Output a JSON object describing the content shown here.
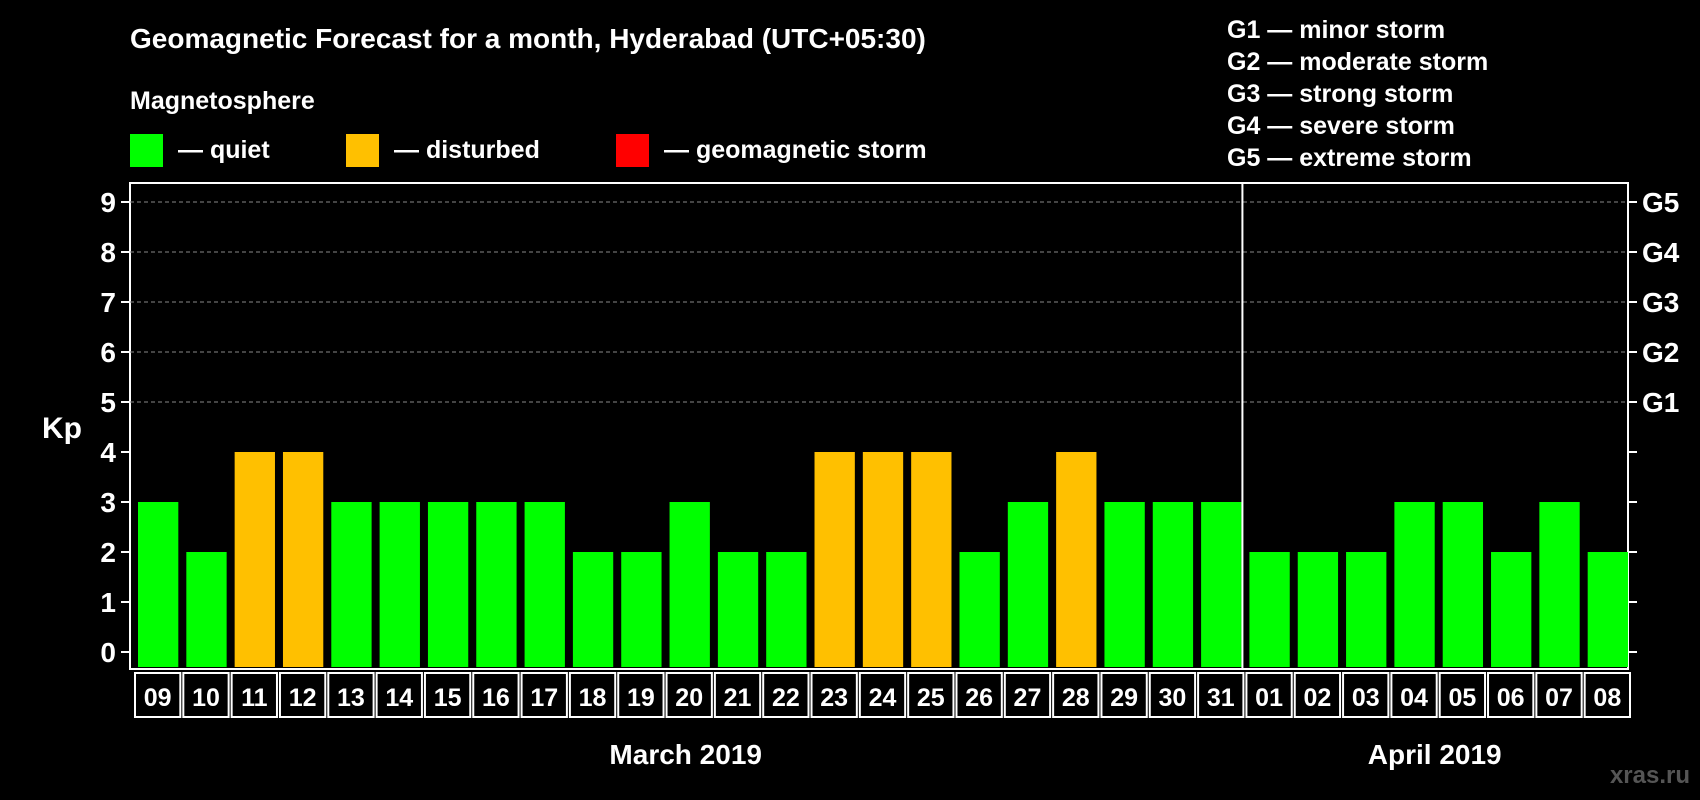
{
  "chart_data": {
    "type": "bar",
    "title": "Geomagnetic Forecast for a month, Hyderabad (UTC+05:30)",
    "ylabel": "Kp",
    "ylim": [
      0,
      9
    ],
    "yticks": [
      "0",
      "1",
      "2",
      "3",
      "4",
      "5",
      "6",
      "7",
      "8",
      "9"
    ],
    "right_axis_labels": [
      {
        "kp": 5,
        "label": "G1"
      },
      {
        "kp": 6,
        "label": "G2"
      },
      {
        "kp": 7,
        "label": "G3"
      },
      {
        "kp": 8,
        "label": "G4"
      },
      {
        "kp": 9,
        "label": "G5"
      }
    ],
    "categories": [
      "09",
      "10",
      "11",
      "12",
      "13",
      "14",
      "15",
      "16",
      "17",
      "18",
      "19",
      "20",
      "21",
      "22",
      "23",
      "24",
      "25",
      "26",
      "27",
      "28",
      "29",
      "30",
      "31",
      "01",
      "02",
      "03",
      "04",
      "05",
      "06",
      "07",
      "08"
    ],
    "values": [
      3,
      2,
      4,
      4,
      3,
      3,
      3,
      3,
      3,
      2,
      2,
      3,
      2,
      2,
      4,
      4,
      4,
      2,
      3,
      4,
      3,
      3,
      3,
      2,
      2,
      2,
      3,
      3,
      2,
      3,
      2
    ],
    "status": [
      "quiet",
      "quiet",
      "disturbed",
      "disturbed",
      "quiet",
      "quiet",
      "quiet",
      "quiet",
      "quiet",
      "quiet",
      "quiet",
      "quiet",
      "quiet",
      "quiet",
      "disturbed",
      "disturbed",
      "disturbed",
      "quiet",
      "quiet",
      "disturbed",
      "quiet",
      "quiet",
      "quiet",
      "quiet",
      "quiet",
      "quiet",
      "quiet",
      "quiet",
      "quiet",
      "quiet",
      "quiet"
    ],
    "months": [
      {
        "label": "March 2019",
        "first_index": 0,
        "last_index": 22
      },
      {
        "label": "April 2019",
        "first_index": 23,
        "last_index": 30
      }
    ],
    "legend_title": "Magnetosphere",
    "legend": [
      {
        "key": "quiet",
        "label": "— quiet",
        "color": "#00ff00"
      },
      {
        "key": "disturbed",
        "label": "— disturbed",
        "color": "#ffc000"
      },
      {
        "key": "storm",
        "label": "— geomagnetic storm",
        "color": "#ff0000"
      }
    ],
    "storm_scale": [
      "G1 — minor storm",
      "G2 — moderate storm",
      "G3 — strong storm",
      "G4 — severe storm",
      "G5 — extreme storm"
    ],
    "grid": true
  },
  "watermark": "xras.ru"
}
